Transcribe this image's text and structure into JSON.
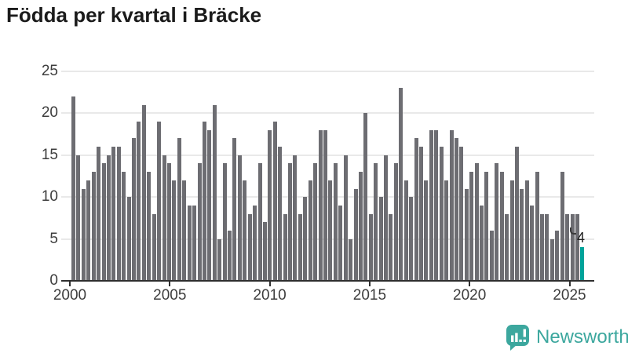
{
  "title": "Födda per kvartal i Bräcke",
  "branding": {
    "logo_text": "Newsworthy",
    "logo_color": "#3ca79e"
  },
  "chart_data": {
    "type": "bar",
    "title": "Födda per kvartal i Bräcke",
    "frequency": "quarterly",
    "x_start": "2000 Q1",
    "x_end": "2025 Q2",
    "x_tick_labels": [
      "2000",
      "2005",
      "2010",
      "2015",
      "2020",
      "2025"
    ],
    "y_tick_labels": [
      0,
      5,
      10,
      15,
      20,
      25
    ],
    "ylim": [
      0,
      25
    ],
    "grid": true,
    "legend": false,
    "bar_color": "#6d6d72",
    "highlight_color": "#00a39a",
    "highlight": {
      "label": "4",
      "value": 4,
      "position": "last-bar"
    },
    "values": [
      22,
      15,
      11,
      12,
      13,
      16,
      14,
      15,
      16,
      16,
      13,
      10,
      17,
      19,
      21,
      13,
      8,
      19,
      15,
      14,
      12,
      17,
      12,
      9,
      9,
      14,
      19,
      18,
      21,
      5,
      14,
      6,
      17,
      15,
      12,
      8,
      9,
      14,
      7,
      18,
      19,
      16,
      8,
      14,
      15,
      8,
      10,
      12,
      14,
      18,
      18,
      12,
      14,
      9,
      15,
      5,
      11,
      13,
      20,
      8,
      14,
      10,
      15,
      8,
      14,
      23,
      12,
      10,
      17,
      16,
      12,
      18,
      18,
      16,
      12,
      18,
      17,
      16,
      11,
      13,
      14,
      9,
      13,
      6,
      14,
      13,
      8,
      12,
      16,
      11,
      12,
      9,
      13,
      8,
      8,
      5,
      6,
      13,
      8,
      8,
      8,
      4
    ]
  }
}
